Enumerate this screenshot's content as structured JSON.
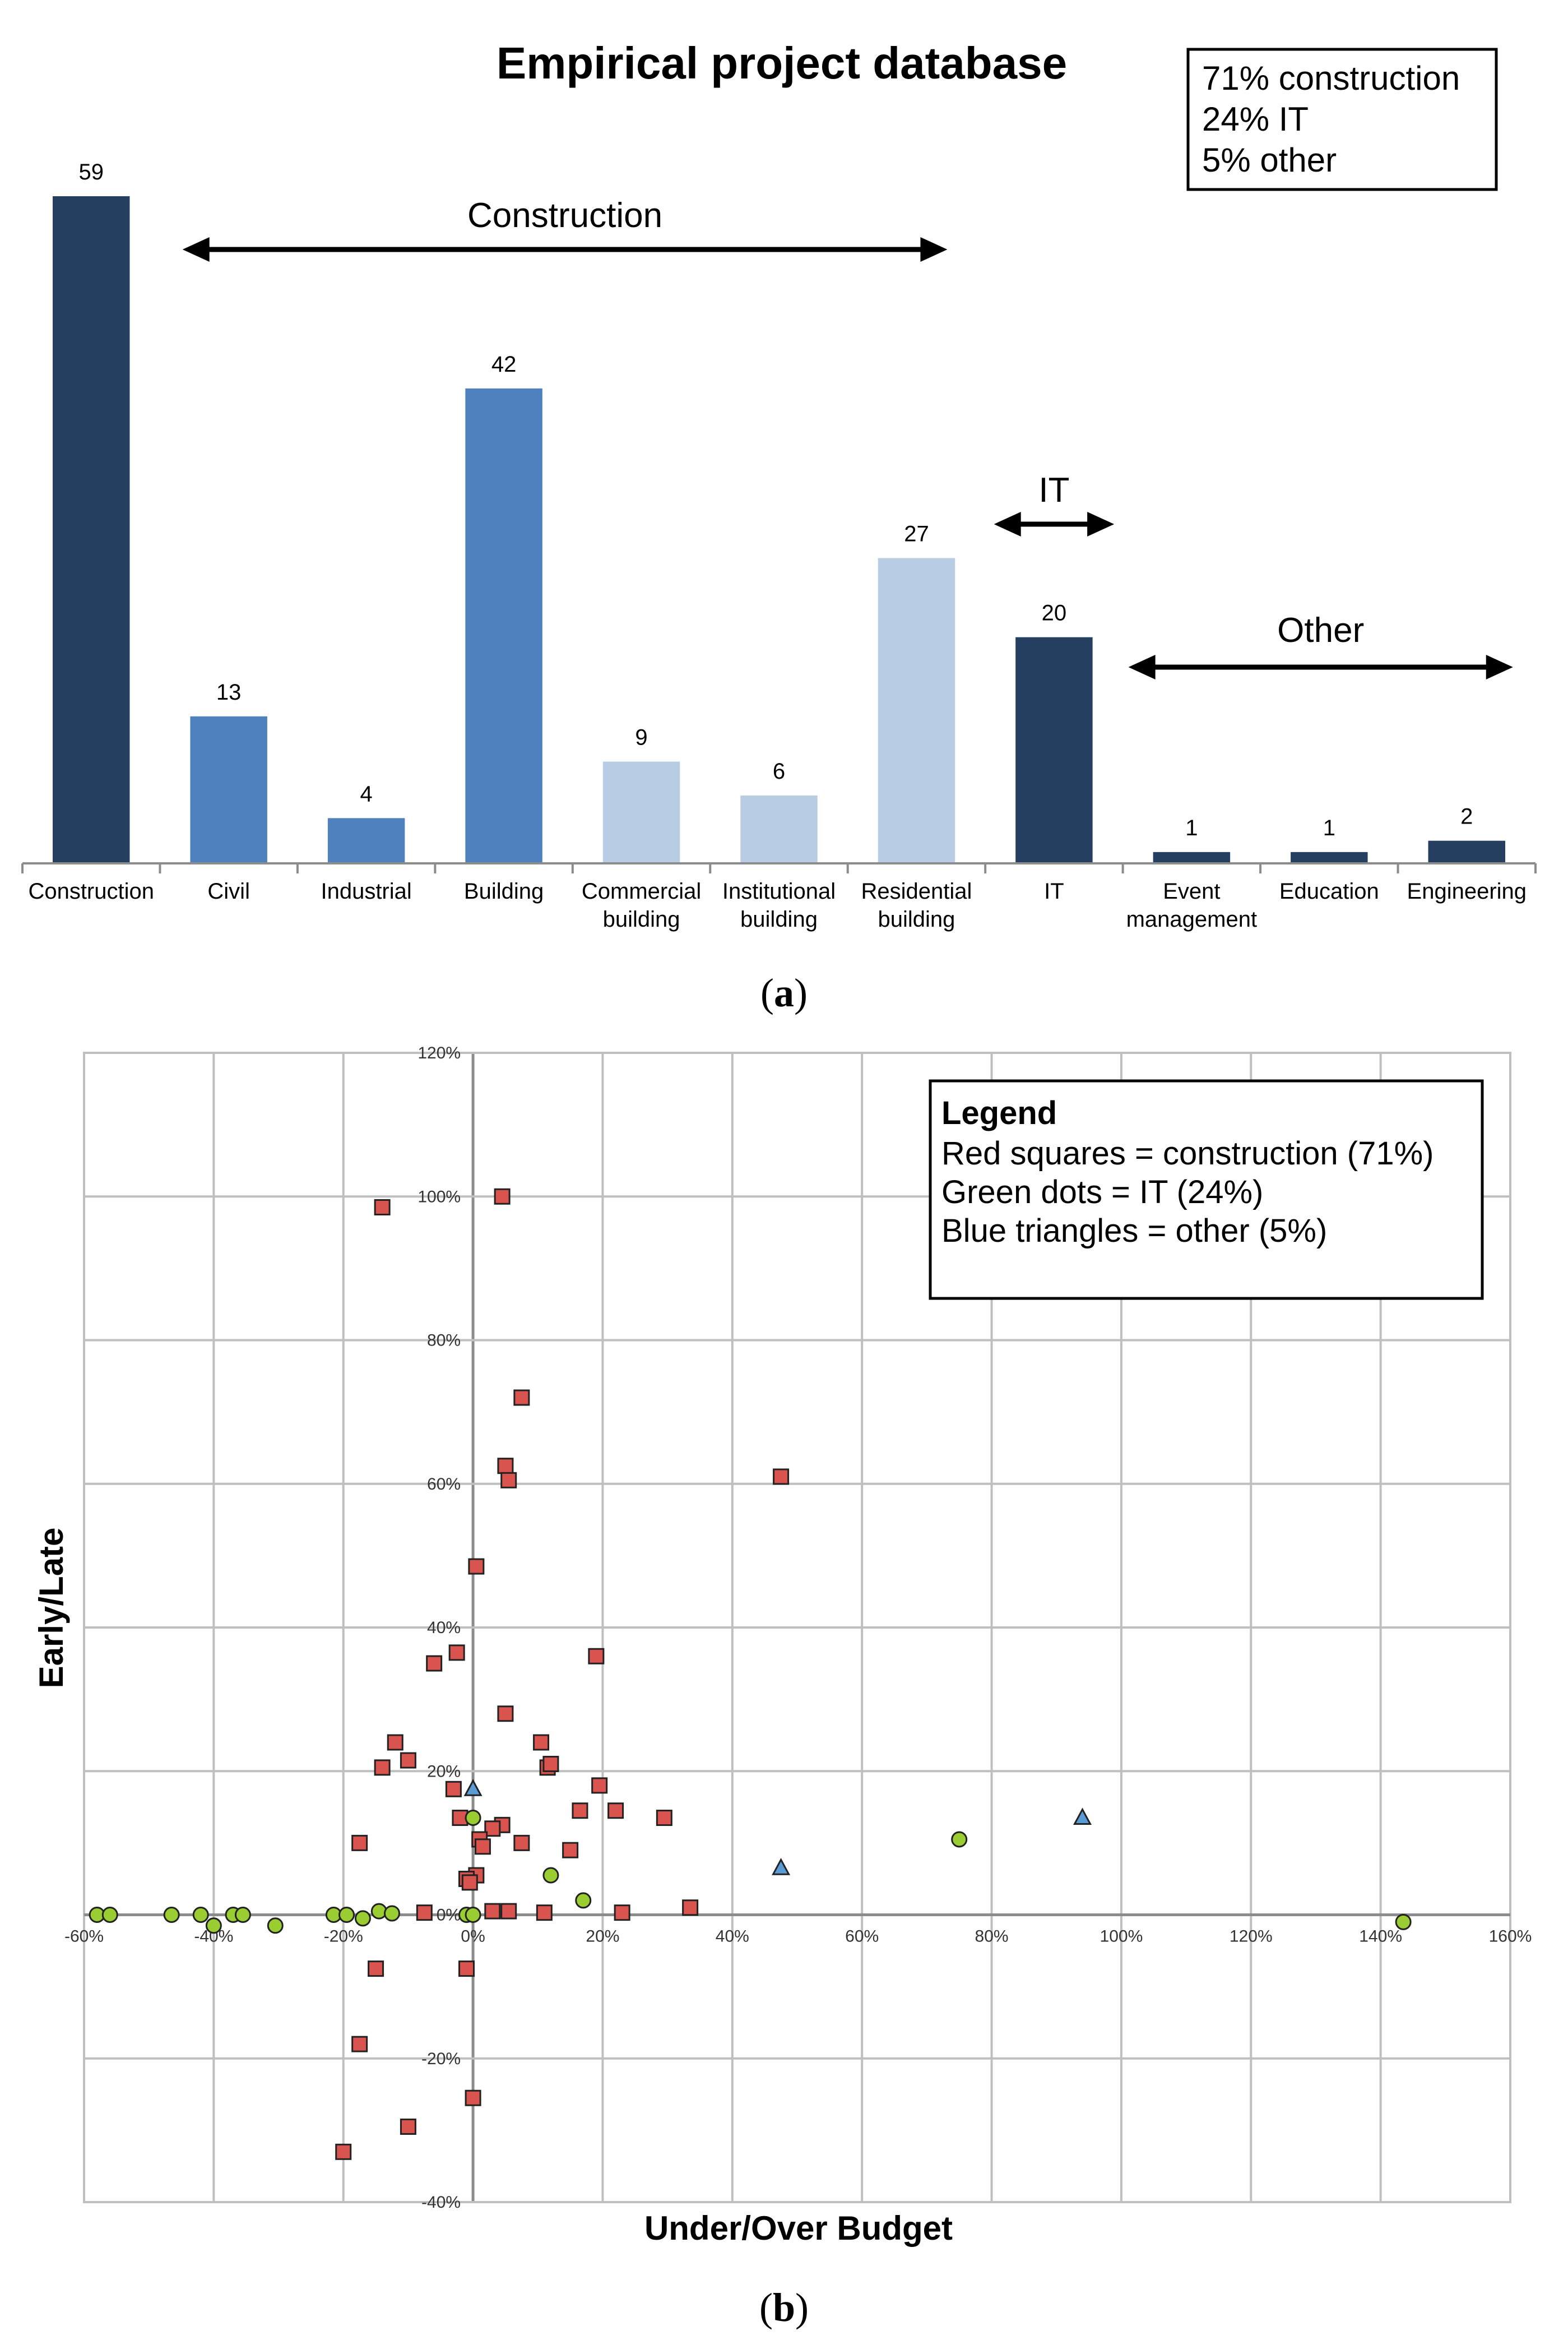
{
  "chart_data": [
    {
      "type": "bar",
      "title": "Empirical project database",
      "categories": [
        "Construction",
        "Civil",
        "Industrial",
        "Building",
        "Commercial building",
        "Institutional building",
        "Residential building",
        "IT",
        "Event management",
        "Education",
        "Engineering"
      ],
      "category_lines": [
        [
          "Construction"
        ],
        [
          "Civil"
        ],
        [
          "Industrial"
        ],
        [
          "Building"
        ],
        [
          "Commercial",
          "building"
        ],
        [
          "Institutional",
          "building"
        ],
        [
          "Residential",
          "building"
        ],
        [
          "IT"
        ],
        [
          "Event",
          "management"
        ],
        [
          "Education"
        ],
        [
          "Engineering"
        ]
      ],
      "values": [
        59,
        13,
        4,
        42,
        9,
        6,
        27,
        20,
        1,
        1,
        2
      ],
      "bar_colors": [
        "#253f61",
        "#4e81bd",
        "#4e81bd",
        "#4e81bd",
        "#b8cce4",
        "#b8cce4",
        "#b8cce4",
        "#253f61",
        "#253f61",
        "#253f61",
        "#253f61"
      ],
      "ylim": [
        0,
        59
      ],
      "info_box": [
        "71% construction",
        "24% IT",
        "5% other"
      ],
      "group_annotations": [
        {
          "label": "Construction",
          "from_category": 1,
          "to_category": 6
        },
        {
          "label": "IT",
          "from_category": 7,
          "to_category": 7
        },
        {
          "label": "Other",
          "from_category": 8,
          "to_category": 10
        }
      ],
      "caption": "a"
    },
    {
      "type": "scatter",
      "xlabel": "Under/Over Budget",
      "ylabel": "Early/Late",
      "xlim": [
        -60,
        160
      ],
      "ylim": [
        -40,
        120
      ],
      "x_ticks": [
        -60,
        -40,
        -20,
        0,
        20,
        40,
        60,
        80,
        100,
        120,
        140,
        160
      ],
      "y_ticks": [
        -40,
        -20,
        0,
        20,
        40,
        60,
        80,
        100,
        120
      ],
      "x_tick_labels": [
        "-60%",
        "-40%",
        "-20%",
        "0%",
        "20%",
        "40%",
        "60%",
        "80%",
        "100%",
        "120%",
        "140%",
        "160%"
      ],
      "y_tick_labels": [
        "-40%",
        "-20%",
        "0%",
        "20%",
        "40%",
        "60%",
        "80%",
        "100%",
        "120%"
      ],
      "grid": true,
      "legend": {
        "title": "Legend",
        "entries": [
          "Red squares = construction (71%)",
          "Green dots = IT (24%)",
          "Blue triangles = other (5%)"
        ]
      },
      "series": [
        {
          "name": "construction",
          "marker": "square",
          "color": "#d9534f",
          "points": [
            [
              4.5,
              100
            ],
            [
              -14,
              98.5
            ],
            [
              7.5,
              72
            ],
            [
              5,
              62.5
            ],
            [
              5.5,
              60.5
            ],
            [
              47.5,
              61
            ],
            [
              0.5,
              48.5
            ],
            [
              -6,
              35
            ],
            [
              -2.5,
              36.5
            ],
            [
              19,
              36
            ],
            [
              5,
              28
            ],
            [
              -12,
              24
            ],
            [
              10.5,
              24
            ],
            [
              -10,
              21.5
            ],
            [
              -14,
              20.5
            ],
            [
              11.5,
              20.5
            ],
            [
              12,
              21
            ],
            [
              19.5,
              18
            ],
            [
              -3,
              17.5
            ],
            [
              16.5,
              14.5
            ],
            [
              22,
              14.5
            ],
            [
              29.5,
              13.5
            ],
            [
              -2,
              13.5
            ],
            [
              4.5,
              12.5
            ],
            [
              3,
              12
            ],
            [
              1,
              10.5
            ],
            [
              1.5,
              9.5
            ],
            [
              7.5,
              10
            ],
            [
              15,
              9
            ],
            [
              -17.5,
              10
            ],
            [
              0.5,
              5.5
            ],
            [
              -1,
              5
            ],
            [
              -0.5,
              4.5
            ],
            [
              33.5,
              1
            ],
            [
              5.5,
              0.5
            ],
            [
              3,
              0.5
            ],
            [
              11,
              0.3
            ],
            [
              23,
              0.3
            ],
            [
              -7.5,
              0.3
            ],
            [
              -15,
              -7.5
            ],
            [
              -1,
              -7.5
            ],
            [
              -17.5,
              -18
            ],
            [
              0,
              -25.5
            ],
            [
              -10,
              -29.5
            ],
            [
              -20,
              -33
            ]
          ]
        },
        {
          "name": "IT",
          "marker": "circle",
          "color": "#9acd32",
          "points": [
            [
              -58,
              0
            ],
            [
              -56,
              0
            ],
            [
              -46.5,
              0
            ],
            [
              -42,
              0
            ],
            [
              -40,
              -1.5
            ],
            [
              -37,
              0
            ],
            [
              -35.5,
              0
            ],
            [
              -30.5,
              -1.5
            ],
            [
              -21.5,
              0
            ],
            [
              -19.5,
              0
            ],
            [
              -17,
              -0.5
            ],
            [
              -14.5,
              0.5
            ],
            [
              -12.5,
              0.2
            ],
            [
              -1,
              0
            ],
            [
              0,
              0
            ],
            [
              0,
              13.5
            ],
            [
              12,
              5.5
            ],
            [
              17,
              2
            ],
            [
              75,
              10.5
            ],
            [
              143.5,
              -1
            ]
          ]
        },
        {
          "name": "other",
          "marker": "triangle",
          "color": "#5b9bd5",
          "points": [
            [
              0,
              17.5
            ],
            [
              47.5,
              6.5
            ],
            [
              94,
              13.5
            ]
          ]
        }
      ],
      "caption": "b"
    }
  ]
}
